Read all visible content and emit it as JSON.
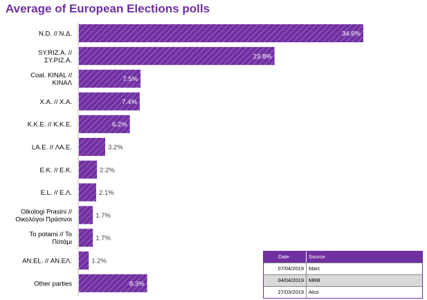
{
  "chart_data": {
    "type": "bar",
    "orientation": "horizontal",
    "title": "Average of European Elections polls",
    "categories": [
      [
        "N.D. // Ν.Δ."
      ],
      [
        "SY.RIZ.A. //",
        "ΣΥ.ΡΙΖ.Α."
      ],
      [
        "Coal. KINAL //",
        "ΚΙΝΑΛ"
      ],
      [
        "X.A. // Χ.Α."
      ],
      [
        "K.K.E. // Κ.Κ.Ε."
      ],
      [
        "LA.E. // ΛΑ.Ε."
      ],
      [
        "E.K. // Ε.Κ."
      ],
      [
        "E.L. // Ε.Λ."
      ],
      [
        "Oikologi Prasini //",
        "Οικολόγοι Πράσινοι"
      ],
      [
        "To potami // To",
        "Ποτάμι"
      ],
      [
        "AN.EL. // ΑΝ.ΕΛ."
      ],
      [
        "Other parties"
      ]
    ],
    "values": [
      34.6,
      23.8,
      7.5,
      7.4,
      6.2,
      3.2,
      2.2,
      2.1,
      1.7,
      1.7,
      1.2,
      8.3
    ],
    "value_labels": [
      "34.6%",
      "23.8%",
      "7.5%",
      "7.4%",
      "6.2%",
      "3.2%",
      "2.2%",
      "2.1%",
      "1.7%",
      "1.7%",
      "1.2%",
      "8.3%"
    ],
    "bar_color": "#7030a0",
    "bar_pattern": "diagonal-hatch"
  },
  "sources_table": {
    "headers": [
      "Date",
      "Source"
    ],
    "rows": [
      [
        "07/04/2019",
        "Marc"
      ],
      [
        "04/04/2019",
        "MRB"
      ],
      [
        "27/03/2019",
        "Alco"
      ]
    ]
  }
}
